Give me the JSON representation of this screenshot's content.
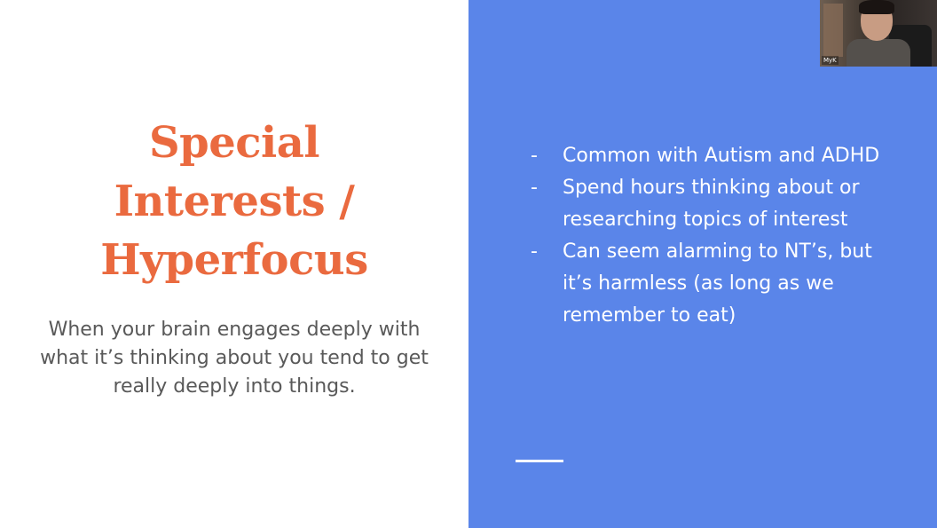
{
  "slide": {
    "title_lines": [
      "Special",
      "Interests /",
      "Hyperfocus"
    ],
    "subtitle": "When your brain engages deeply with what it’s thinking about you tend to get really deeply into things.",
    "bullet_marker": "-",
    "bullets": [
      "Common with Autism and ADHD",
      "Spend hours thinking about or researching topics of interest",
      "Can seem alarming to NT’s, but it’s harmless (as long as we remember to eat)"
    ]
  },
  "webcam": {
    "participant_name": "MyK"
  },
  "colors": {
    "title": "#ea6a3f",
    "subtitle": "#595959",
    "right_panel": "#5a85e9",
    "bullet_text": "#ffffff"
  }
}
